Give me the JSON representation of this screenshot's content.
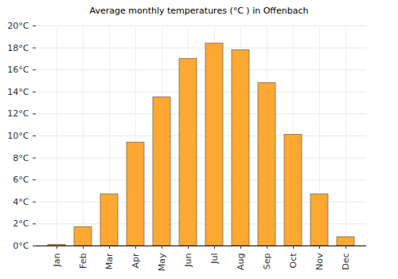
{
  "chart_data": {
    "type": "bar",
    "title": "Average monthly temperatures (°C ) in Offenbach",
    "categories": [
      "Jan",
      "Feb",
      "Mar",
      "Apr",
      "May",
      "Jun",
      "Jul",
      "Aug",
      "Sep",
      "Oct",
      "Nov",
      "Dec"
    ],
    "values": [
      0.1,
      1.7,
      4.7,
      9.4,
      13.5,
      17.0,
      18.4,
      17.8,
      14.8,
      10.1,
      4.7,
      0.8
    ],
    "color": "#fca832",
    "ylim": [
      0,
      20
    ],
    "yticks": [
      {
        "value": 0,
        "label": "0°C"
      },
      {
        "value": 2,
        "label": "2°C"
      },
      {
        "value": 4,
        "label": "4°C"
      },
      {
        "value": 6,
        "label": "6°C"
      },
      {
        "value": 8,
        "label": "8°C"
      },
      {
        "value": 10,
        "label": "10°C"
      },
      {
        "value": 12,
        "label": "12°C"
      },
      {
        "value": 14,
        "label": "14°C"
      },
      {
        "value": 16,
        "label": "16°C"
      },
      {
        "value": 18,
        "label": "18°C"
      },
      {
        "value": 20,
        "label": "20°C"
      }
    ],
    "grid": true
  }
}
